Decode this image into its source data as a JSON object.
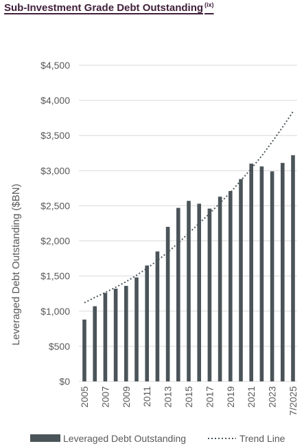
{
  "title": {
    "text": "Sub-Investment Grade Debt Outstanding",
    "superscript": "(ix)"
  },
  "colors": {
    "bar": "#4a5459",
    "trend": "#4a5459",
    "grid": "#d9d9d9",
    "text": "#58595b",
    "title": "#3f1f3a"
  },
  "chart_data": {
    "type": "bar",
    "ylabel": "Leveraged Debt Outstanding ($BN)",
    "xlabel": "",
    "ylim": [
      0,
      4500
    ],
    "yticks": [
      0,
      500,
      1000,
      1500,
      2000,
      2500,
      3000,
      3500,
      4000,
      4500
    ],
    "ytick_labels": [
      "$0",
      "$500",
      "$1,000",
      "$1,500",
      "$2,000",
      "$2,500",
      "$3,000",
      "$3,500",
      "$4,000",
      "$4,500"
    ],
    "grid": true,
    "legend_position": "bottom",
    "categories": [
      "2005",
      "2006",
      "2007",
      "2008",
      "2009",
      "2010",
      "2011",
      "2012",
      "2013",
      "2014",
      "2015",
      "2016",
      "2017",
      "2018",
      "2019",
      "2020",
      "2021",
      "2022",
      "2023",
      "2024",
      "7/2025"
    ],
    "x_tick_labels": [
      "2005",
      "",
      "2007",
      "",
      "2009",
      "",
      "2011",
      "",
      "2013",
      "",
      "2015",
      "",
      "2017",
      "",
      "2019",
      "",
      "2021",
      "",
      "2023",
      "",
      "7/2025"
    ],
    "series": [
      {
        "name": "Leveraged Debt Outstanding",
        "type": "bar",
        "values": [
          880,
          1070,
          1260,
          1320,
          1360,
          1480,
          1650,
          1850,
          2200,
          2470,
          2570,
          2530,
          2460,
          2630,
          2710,
          2880,
          3100,
          3060,
          2990,
          3110,
          3220
        ]
      },
      {
        "name": "Trend Line",
        "type": "line",
        "style": "dotted",
        "values": [
          1120,
          1195,
          1265,
          1340,
          1420,
          1510,
          1610,
          1720,
          1840,
          1970,
          2110,
          2250,
          2390,
          2540,
          2690,
          2860,
          3030,
          3210,
          3410,
          3620,
          3840
        ]
      }
    ]
  }
}
